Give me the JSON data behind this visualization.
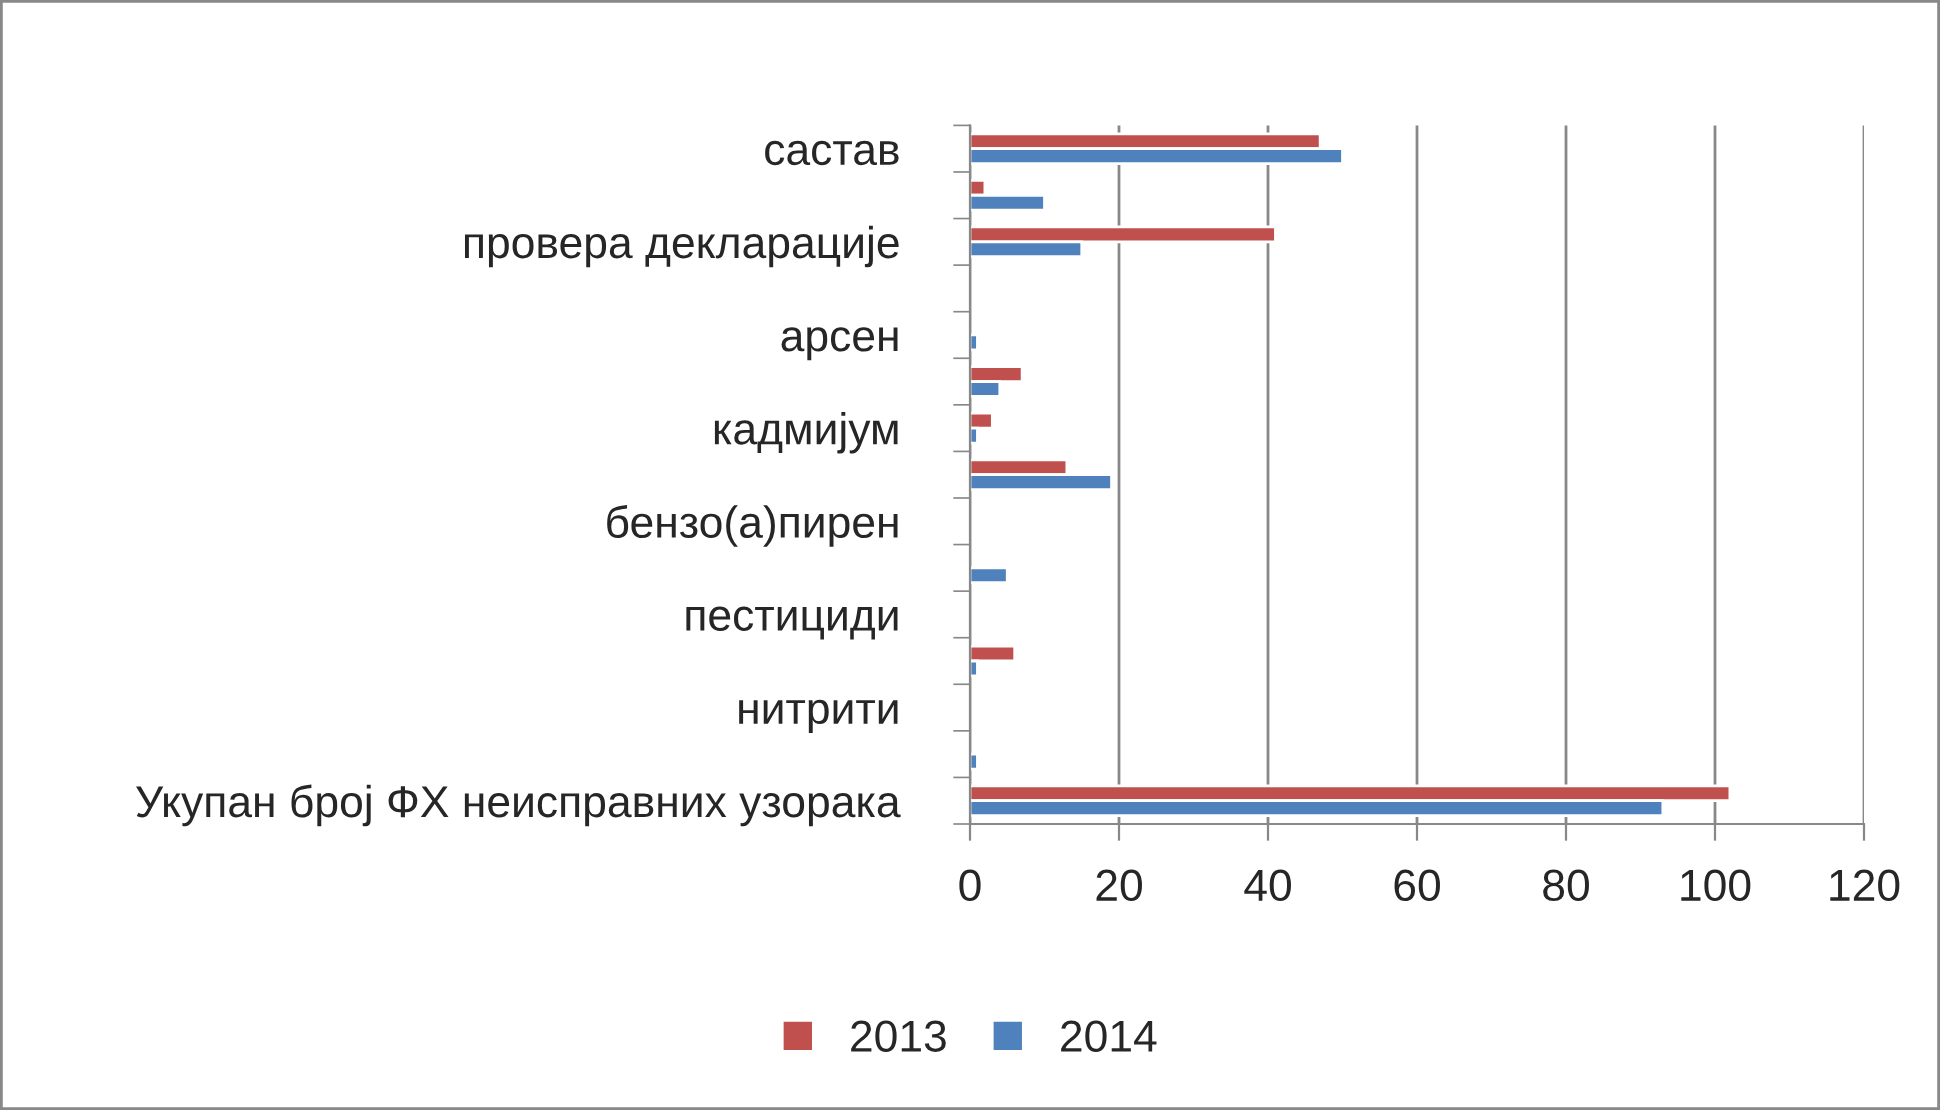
{
  "chart_data": {
    "type": "bar",
    "orientation": "horizontal",
    "categories": [
      "састав",
      null,
      "провера декларације",
      null,
      "арсен",
      null,
      "кадмијум",
      null,
      "бензо(а)пирен",
      null,
      "пестициди",
      null,
      "нитрити",
      null,
      "Укупан број ФХ неисправних узорака"
    ],
    "series": [
      {
        "name": "2013",
        "color": "#c0504d",
        "values": [
          47,
          2,
          41,
          null,
          null,
          7,
          3,
          13,
          null,
          null,
          null,
          6,
          null,
          null,
          102
        ]
      },
      {
        "name": "2014",
        "color": "#4f81bd",
        "values": [
          50,
          10,
          15,
          null,
          1,
          4,
          1,
          19,
          null,
          5,
          null,
          1,
          null,
          1,
          93
        ]
      }
    ],
    "xlim": [
      0,
      120
    ],
    "xticks": [
      0,
      20,
      40,
      60,
      80,
      100,
      120
    ],
    "grid": "x",
    "legend": "bottom"
  }
}
